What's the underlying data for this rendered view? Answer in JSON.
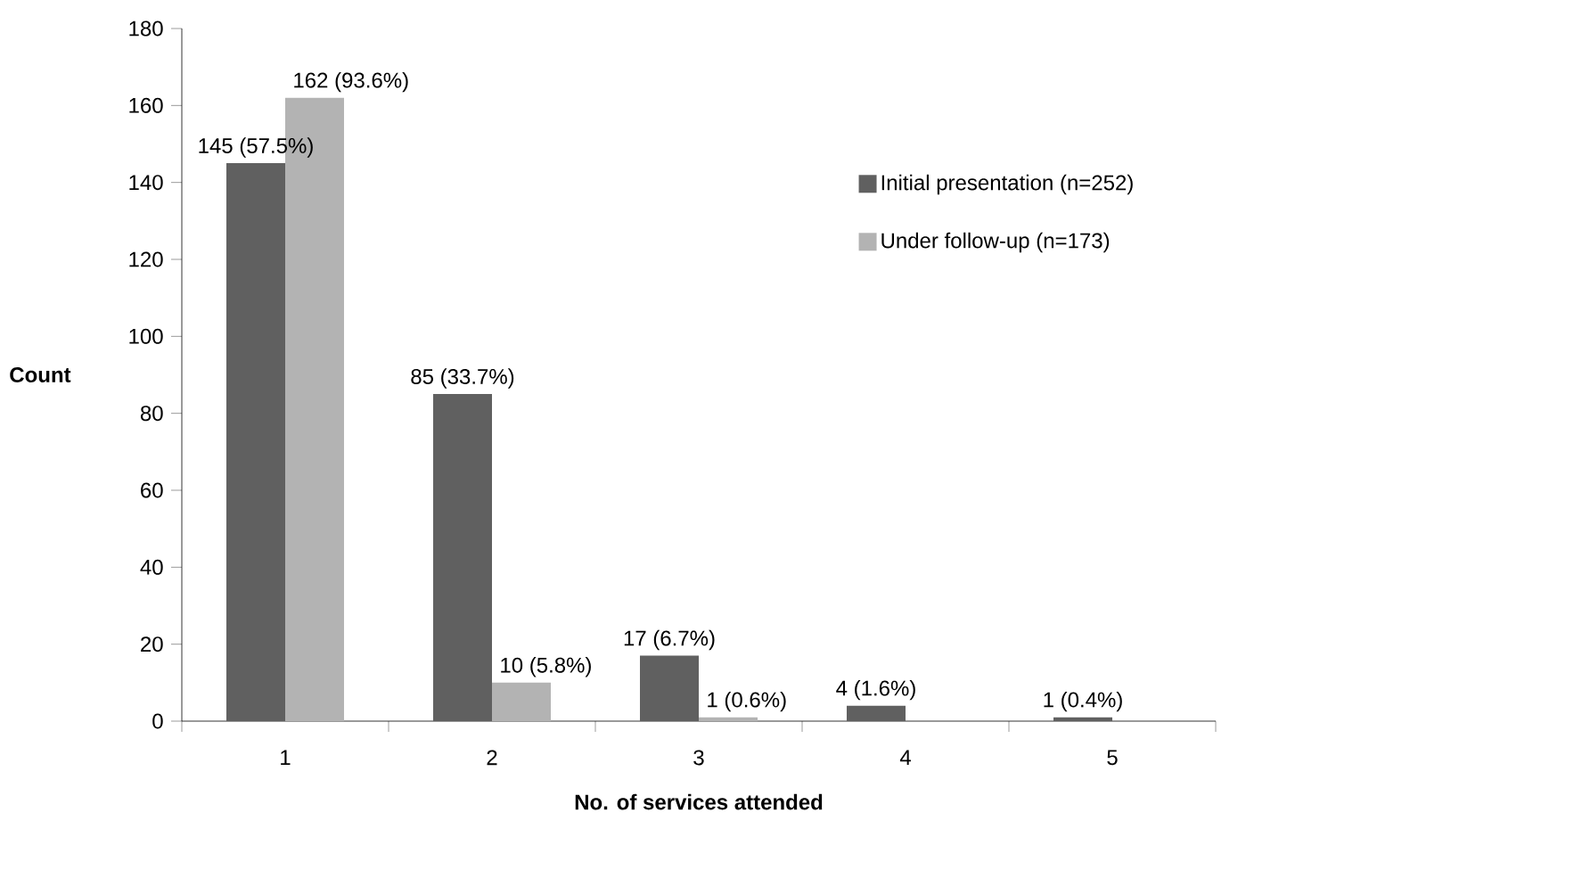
{
  "chart_data": {
    "type": "bar",
    "xlabel": "No. of services attended",
    "ylabel": "Count",
    "categories": [
      "1",
      "2",
      "3",
      "4",
      "5"
    ],
    "series": [
      {
        "name": "Initial presentation (n=252)",
        "color": "#606060",
        "values": [
          145,
          85,
          17,
          4,
          1
        ],
        "value_labels": [
          "145 (57.5%)",
          "85 (33.7%)",
          "17 (6.7%)",
          "4 (1.6%)",
          "1 (0.4%)"
        ]
      },
      {
        "name": "Under follow-up (n=173)",
        "color": "#b3b3b3",
        "values": [
          162,
          10,
          1,
          null,
          null
        ],
        "value_labels": [
          "162 (93.6%)",
          "10 (5.8%)",
          "1 (0.6%)",
          null,
          null
        ]
      }
    ],
    "ylim": [
      0,
      180
    ],
    "yticks": [
      0,
      20,
      40,
      60,
      80,
      100,
      120,
      140,
      160,
      180
    ],
    "grid": false,
    "legend": "top right"
  }
}
